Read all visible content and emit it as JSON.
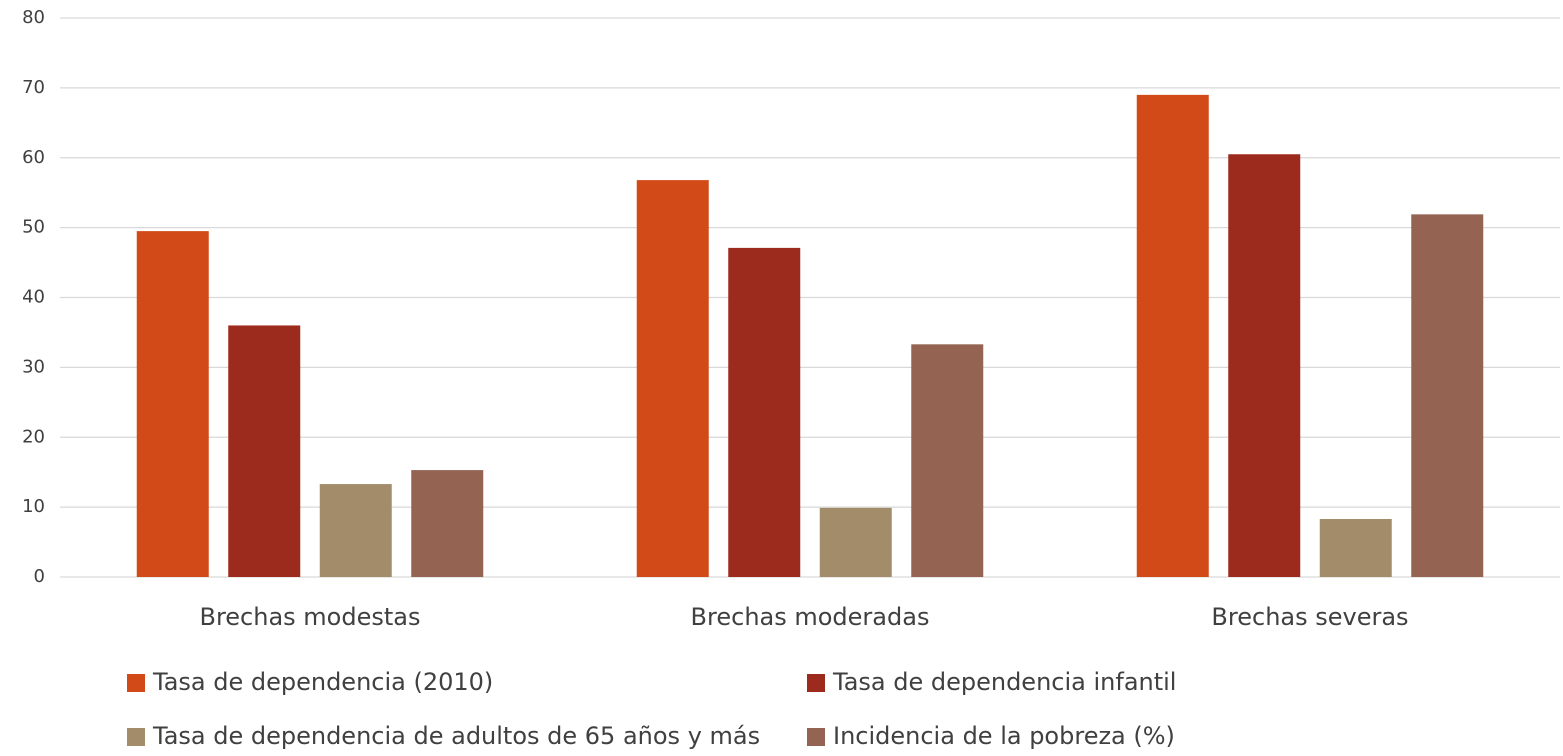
{
  "chart_data": {
    "type": "bar",
    "categories": [
      "Brechas modestas",
      "Brechas moderadas",
      "Brechas severas"
    ],
    "series": [
      {
        "name": "Tasa de dependencia (2010)",
        "color": "#d14a17",
        "values": [
          49.5,
          56.8,
          69.0
        ]
      },
      {
        "name": "Tasa de dependencia infantil",
        "color": "#9c2b1e",
        "values": [
          36.0,
          47.1,
          60.5
        ]
      },
      {
        "name": "Tasa de dependencia de adultos de 65 años y más",
        "color": "#a38c6a",
        "values": [
          13.3,
          9.9,
          8.3
        ]
      },
      {
        "name": "Incidencia de la pobreza (%)",
        "color": "#956352",
        "values": [
          15.3,
          33.3,
          51.9
        ]
      }
    ],
    "ylim": [
      0,
      80
    ],
    "yticks": [
      0,
      10,
      20,
      30,
      40,
      50,
      60,
      70,
      80
    ],
    "grid": true,
    "legend": "bottom"
  }
}
